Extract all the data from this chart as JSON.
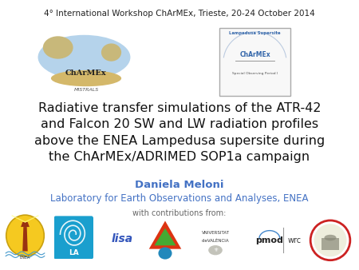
{
  "background_color": "#ffffff",
  "header_text": "4° International Workshop ChArMEx, Trieste, 20-24 October 2014",
  "header_fontsize": 7.5,
  "header_color": "#222222",
  "title_text": "Radiative transfer simulations of the ATR-42\nand Falcon 20 SW and LW radiation profiles\nabove the ENEA Lampedusa supersite during\nthe ChArMEx/ADRIMED SOP1a campaign",
  "title_fontsize": 11.5,
  "title_color": "#111111",
  "author_text": "Daniela Meloni",
  "author_fontsize": 9.5,
  "author_color": "#4472c4",
  "affiliation_text": "Laboratory for Earth Observations and Analyses, ENEA",
  "affiliation_fontsize": 8.5,
  "affiliation_color": "#4472c4",
  "contrib_text": "with contributions from:",
  "contrib_fontsize": 7,
  "contrib_color": "#666666",
  "fig_width": 4.5,
  "fig_height": 3.38,
  "dpi": 100
}
